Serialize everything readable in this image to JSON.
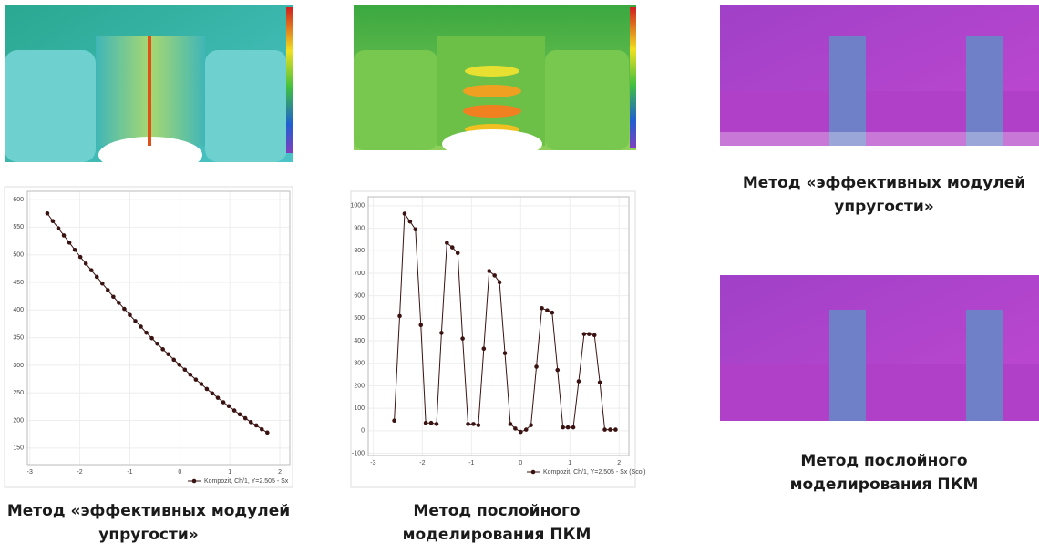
{
  "chart_data": [
    {
      "type": "line",
      "x": [
        -2.65,
        -2.54,
        -2.43,
        -2.32,
        -2.21,
        -2.1,
        -1.99,
        -1.88,
        -1.77,
        -1.66,
        -1.55,
        -1.44,
        -1.33,
        -1.22,
        -1.11,
        -1.0,
        -0.89,
        -0.78,
        -0.67,
        -0.56,
        -0.45,
        -0.34,
        -0.23,
        -0.12,
        -0.01,
        0.1,
        0.21,
        0.32,
        0.43,
        0.54,
        0.65,
        0.76,
        0.87,
        0.98,
        1.09,
        1.2,
        1.31,
        1.42,
        1.53,
        1.64,
        1.75
      ],
      "series": [
        {
          "name": "Kompozit, Ch/1, Y=2.505 - Sx",
          "color": "#3a1212",
          "values": [
            575,
            561,
            548,
            535,
            522,
            509,
            496,
            484,
            472,
            460,
            448,
            436,
            424,
            413,
            402,
            391,
            380,
            370,
            359,
            349,
            339,
            329,
            320,
            310,
            301,
            292,
            283,
            274,
            266,
            257,
            249,
            241,
            233,
            226,
            218,
            211,
            204,
            197,
            191,
            184,
            178
          ]
        }
      ],
      "xlim": [
        -3.05,
        2.2
      ],
      "xticks": [
        -3,
        -2,
        -1,
        0,
        1,
        2
      ],
      "ylim": [
        120,
        615
      ],
      "yticks": [
        150,
        200,
        250,
        300,
        350,
        400,
        450,
        500,
        550,
        600
      ],
      "grid": true,
      "legend": "bottom-right"
    },
    {
      "type": "line",
      "x": [
        -2.57,
        -2.46,
        -2.36,
        -2.25,
        -2.14,
        -2.03,
        -1.93,
        -1.82,
        -1.71,
        -1.61,
        -1.5,
        -1.39,
        -1.28,
        -1.18,
        -1.07,
        -0.96,
        -0.86,
        -0.75,
        -0.64,
        -0.53,
        -0.43,
        -0.32,
        -0.21,
        -0.11,
        0.0,
        0.11,
        0.21,
        0.32,
        0.43,
        0.54,
        0.64,
        0.75,
        0.86,
        0.96,
        1.07,
        1.18,
        1.29,
        1.39,
        1.5,
        1.61,
        1.71,
        1.82,
        1.93
      ],
      "series": [
        {
          "name": "Kompozit, Ch/1, Y=2.505 - Sx (Scol)",
          "color": "#3a1212",
          "values": [
            45,
            510,
            965,
            930,
            895,
            470,
            35,
            35,
            30,
            435,
            835,
            815,
            790,
            410,
            30,
            30,
            25,
            365,
            710,
            690,
            660,
            345,
            30,
            10,
            -5,
            5,
            25,
            285,
            545,
            535,
            525,
            270,
            15,
            15,
            15,
            220,
            430,
            430,
            425,
            215,
            5,
            5,
            5
          ]
        }
      ],
      "xlim": [
        -3.1,
        2.2
      ],
      "xticks": [
        -3,
        -2,
        -1,
        0,
        1,
        2
      ],
      "ylim": [
        -110,
        1040
      ],
      "yticks": [
        -100,
        0,
        100,
        200,
        300,
        400,
        500,
        600,
        700,
        800,
        900,
        1000
      ],
      "grid": true,
      "legend": "bottom-right"
    }
  ],
  "captions": {
    "left": [
      "Метод «эффективных модулей",
      "упругости»"
    ],
    "middle": [
      "Метод послойного",
      "моделирования ПКМ"
    ],
    "right_top": [
      "Метод «эффективных модулей",
      "упругости»"
    ],
    "right_bottom": [
      "Метод послойного",
      "моделирования ПКМ"
    ]
  }
}
